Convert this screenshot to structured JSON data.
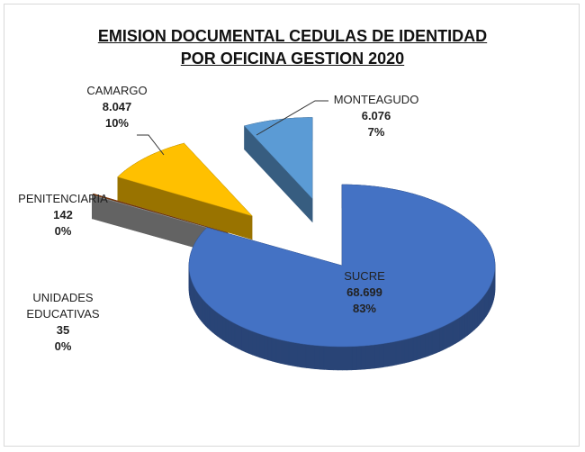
{
  "chart_data": {
    "type": "pie3d",
    "title": [
      "EMISION DOCUMENTAL CEDULAS DE IDENTIDAD",
      "POR OFICINA GESTION 2020"
    ],
    "categories": [
      "SUCRE",
      "UNIDADES EDUCATIVAS",
      "PENITENCIARIA",
      "CAMARGO",
      "MONTEAGUDO"
    ],
    "values": [
      68699,
      35,
      142,
      8047,
      6076
    ],
    "value_labels": [
      "68.699",
      "35",
      "142",
      "8.047",
      "6.076"
    ],
    "percents": [
      83,
      0,
      0,
      10,
      7
    ],
    "percent_labels": [
      "83%",
      "0%",
      "0%",
      "10%",
      "7%"
    ],
    "colors": [
      "#4472c4",
      "#a5a5a5",
      "#843c0c",
      "#ffc000",
      "#5b9bd5"
    ]
  }
}
